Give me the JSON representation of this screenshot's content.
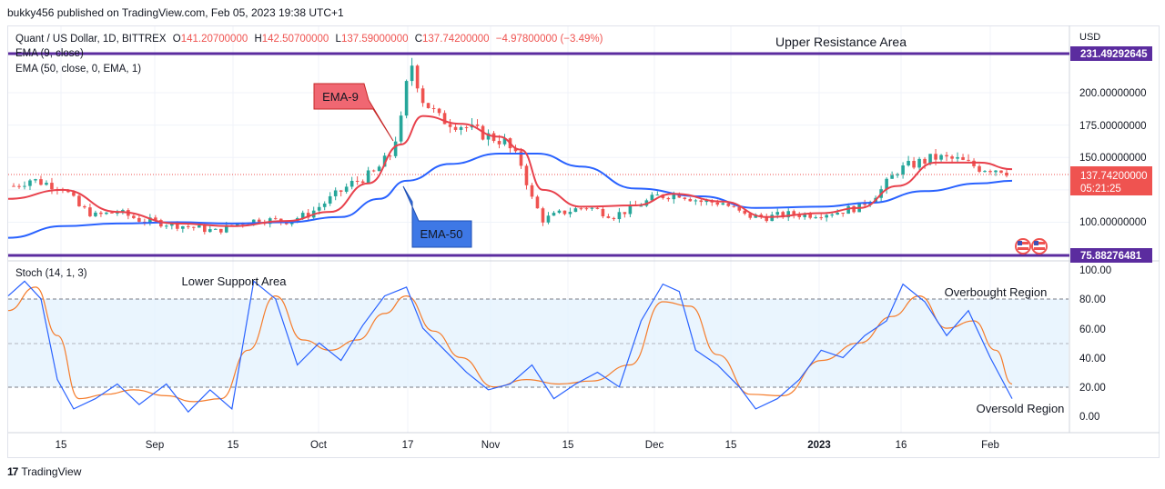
{
  "header": {
    "published": "bukky456 published on TradingView.com, Feb 05, 2023 19:38 UTC+1"
  },
  "legend": {
    "symbol": "Quant / US Dollar, 1D, BITTREX",
    "o_label": "O",
    "o_value": "141.20700000",
    "h_label": "H",
    "h_value": "142.50700000",
    "l_label": "L",
    "l_value": "137.59000000",
    "c_label": "C",
    "c_value": "137.74200000",
    "change": "−4.97800000 (−3.49%)",
    "ema9": "EMA (9, close)",
    "ema50": "EMA (50, close, 0, EMA, 1)",
    "stoch": "Stoch (14, 1, 3)"
  },
  "annotations": {
    "upper": "Upper Resistance Area",
    "lower": "Lower Support Area",
    "ema9_callout": "EMA-9",
    "ema50_callout": "EMA-50",
    "overbought": "Overbought Region",
    "oversold": "Oversold Region"
  },
  "price_axis": {
    "currency": "USD",
    "ticks": [
      "200.00000000",
      "175.00000000",
      "150.00000000",
      "100.00000000"
    ],
    "resistance_label": "231.49292645",
    "support_label": "75.88276481",
    "last_price_label": "137.74200000",
    "countdown_label": "05:21:25"
  },
  "stoch_axis": {
    "ticks": [
      "100.00",
      "80.00",
      "60.00",
      "40.00",
      "20.00",
      "0.00"
    ]
  },
  "time_axis": [
    "15",
    "Sep",
    "15",
    "Oct",
    "17",
    "Nov",
    "15",
    "Dec",
    "15",
    "2023",
    "16",
    "Feb"
  ],
  "footer": {
    "brand": "TradingView",
    "logo": "17"
  },
  "colors": {
    "up": "#26a69a",
    "down": "#ef5350",
    "ema9": "#e8414c",
    "ema50": "#2962ff",
    "level": "#5b2c9f",
    "stoch_k": "#2962ff",
    "stoch_d": "#f57c2b",
    "band": "#e3f2fd"
  },
  "chart_data": [
    {
      "type": "candlestick",
      "title": "Quant / US Dollar, 1D, BITTREX",
      "y_unit": "USD",
      "ylim": [
        72,
        240
      ],
      "x_range": [
        "2022-08-05",
        "2023-02-05"
      ],
      "resistance_level": 231.49292645,
      "support_level": 75.88276481,
      "last_close": 137.742,
      "ohlc_points": [
        {
          "date": "2022-08-06",
          "close": 128
        },
        {
          "date": "2022-08-09",
          "close": 133
        },
        {
          "date": "2022-08-12",
          "close": 130
        },
        {
          "date": "2022-08-15",
          "close": 127
        },
        {
          "date": "2022-08-18",
          "close": 112
        },
        {
          "date": "2022-08-21",
          "close": 105
        },
        {
          "date": "2022-08-25",
          "close": 108
        },
        {
          "date": "2022-08-29",
          "close": 102
        },
        {
          "date": "2022-09-03",
          "close": 99
        },
        {
          "date": "2022-09-08",
          "close": 96
        },
        {
          "date": "2022-09-12",
          "close": 93
        },
        {
          "date": "2022-09-16",
          "close": 99
        },
        {
          "date": "2022-09-20",
          "close": 102
        },
        {
          "date": "2022-09-25",
          "close": 101
        },
        {
          "date": "2022-09-29",
          "close": 106
        },
        {
          "date": "2022-10-03",
          "close": 118
        },
        {
          "date": "2022-10-07",
          "close": 130
        },
        {
          "date": "2022-10-11",
          "close": 138
        },
        {
          "date": "2022-10-14",
          "close": 152
        },
        {
          "date": "2022-10-16",
          "close": 178
        },
        {
          "date": "2022-10-17",
          "close": 205
        },
        {
          "date": "2022-10-18",
          "close": 222
        },
        {
          "date": "2022-10-20",
          "close": 195
        },
        {
          "date": "2022-10-23",
          "close": 180
        },
        {
          "date": "2022-10-27",
          "close": 175
        },
        {
          "date": "2022-10-31",
          "close": 168
        },
        {
          "date": "2022-11-04",
          "close": 162
        },
        {
          "date": "2022-11-07",
          "close": 145
        },
        {
          "date": "2022-11-09",
          "close": 118
        },
        {
          "date": "2022-11-11",
          "close": 102
        },
        {
          "date": "2022-11-15",
          "close": 108
        },
        {
          "date": "2022-11-19",
          "close": 112
        },
        {
          "date": "2022-11-24",
          "close": 105
        },
        {
          "date": "2022-11-28",
          "close": 112
        },
        {
          "date": "2022-12-02",
          "close": 120
        },
        {
          "date": "2022-12-06",
          "close": 122
        },
        {
          "date": "2022-12-10",
          "close": 116
        },
        {
          "date": "2022-12-14",
          "close": 115
        },
        {
          "date": "2022-12-18",
          "close": 105
        },
        {
          "date": "2022-12-22",
          "close": 104
        },
        {
          "date": "2022-12-26",
          "close": 106
        },
        {
          "date": "2022-12-30",
          "close": 106
        },
        {
          "date": "2023-01-04",
          "close": 108
        },
        {
          "date": "2023-01-08",
          "close": 112
        },
        {
          "date": "2023-01-12",
          "close": 125
        },
        {
          "date": "2023-01-15",
          "close": 140
        },
        {
          "date": "2023-01-18",
          "close": 145
        },
        {
          "date": "2023-01-22",
          "close": 150
        },
        {
          "date": "2023-01-26",
          "close": 148
        },
        {
          "date": "2023-01-30",
          "close": 142
        },
        {
          "date": "2023-02-03",
          "close": 141
        },
        {
          "date": "2023-02-05",
          "close": 137.742
        }
      ],
      "series": [
        {
          "name": "EMA (9, close)",
          "points": [
            {
              "date": "2022-08-05",
              "value": 118
            },
            {
              "date": "2022-08-15",
              "value": 125
            },
            {
              "date": "2022-08-25",
              "value": 108
            },
            {
              "date": "2022-09-05",
              "value": 99
            },
            {
              "date": "2022-09-15",
              "value": 97
            },
            {
              "date": "2022-09-25",
              "value": 101
            },
            {
              "date": "2022-10-03",
              "value": 108
            },
            {
              "date": "2022-10-10",
              "value": 130
            },
            {
              "date": "2022-10-16",
              "value": 160
            },
            {
              "date": "2022-10-20",
              "value": 182
            },
            {
              "date": "2022-10-27",
              "value": 176
            },
            {
              "date": "2022-11-03",
              "value": 166
            },
            {
              "date": "2022-11-07",
              "value": 156
            },
            {
              "date": "2022-11-11",
              "value": 125
            },
            {
              "date": "2022-11-18",
              "value": 112
            },
            {
              "date": "2022-11-28",
              "value": 113
            },
            {
              "date": "2022-12-05",
              "value": 122
            },
            {
              "date": "2022-12-14",
              "value": 116
            },
            {
              "date": "2022-12-22",
              "value": 104
            },
            {
              "date": "2023-01-01",
              "value": 107
            },
            {
              "date": "2023-01-08",
              "value": 111
            },
            {
              "date": "2023-01-15",
              "value": 128
            },
            {
              "date": "2023-01-22",
              "value": 146
            },
            {
              "date": "2023-01-30",
              "value": 146
            },
            {
              "date": "2023-02-05",
              "value": 141
            }
          ]
        },
        {
          "name": "EMA (50, close, 0, EMA, 1)",
          "points": [
            {
              "date": "2022-08-05",
              "value": 88
            },
            {
              "date": "2022-08-15",
              "value": 97
            },
            {
              "date": "2022-08-25",
              "value": 99
            },
            {
              "date": "2022-09-05",
              "value": 100
            },
            {
              "date": "2022-09-15",
              "value": 99
            },
            {
              "date": "2022-09-25",
              "value": 100
            },
            {
              "date": "2022-10-05",
              "value": 104
            },
            {
              "date": "2022-10-12",
              "value": 118
            },
            {
              "date": "2022-10-17",
              "value": 132
            },
            {
              "date": "2022-10-25",
              "value": 145
            },
            {
              "date": "2022-11-03",
              "value": 153
            },
            {
              "date": "2022-11-10",
              "value": 153
            },
            {
              "date": "2022-11-18",
              "value": 143
            },
            {
              "date": "2022-11-28",
              "value": 126
            },
            {
              "date": "2022-12-10",
              "value": 120
            },
            {
              "date": "2022-12-20",
              "value": 111
            },
            {
              "date": "2023-01-01",
              "value": 112
            },
            {
              "date": "2023-01-10",
              "value": 115
            },
            {
              "date": "2023-01-20",
              "value": 124
            },
            {
              "date": "2023-01-30",
              "value": 130
            },
            {
              "date": "2023-02-05",
              "value": 132
            }
          ]
        }
      ]
    },
    {
      "type": "line",
      "title": "Stoch (14, 1, 3)",
      "ylim": [
        -12,
        102
      ],
      "bands": {
        "upper": 80,
        "middle": 50,
        "lower": 20
      },
      "series": [
        {
          "name": "%K",
          "points": [
            {
              "date": "2022-08-05",
              "value": 82
            },
            {
              "date": "2022-08-08",
              "value": 92
            },
            {
              "date": "2022-08-11",
              "value": 80
            },
            {
              "date": "2022-08-14",
              "value": 25
            },
            {
              "date": "2022-08-17",
              "value": 5
            },
            {
              "date": "2022-08-21",
              "value": 12
            },
            {
              "date": "2022-08-25",
              "value": 22
            },
            {
              "date": "2022-08-29",
              "value": 8
            },
            {
              "date": "2022-09-03",
              "value": 22
            },
            {
              "date": "2022-09-07",
              "value": 3
            },
            {
              "date": "2022-09-11",
              "value": 18
            },
            {
              "date": "2022-09-15",
              "value": 5
            },
            {
              "date": "2022-09-19",
              "value": 92
            },
            {
              "date": "2022-09-23",
              "value": 80
            },
            {
              "date": "2022-09-27",
              "value": 35
            },
            {
              "date": "2022-10-01",
              "value": 50
            },
            {
              "date": "2022-10-05",
              "value": 38
            },
            {
              "date": "2022-10-09",
              "value": 62
            },
            {
              "date": "2022-10-13",
              "value": 82
            },
            {
              "date": "2022-10-17",
              "value": 88
            },
            {
              "date": "2022-10-20",
              "value": 60
            },
            {
              "date": "2022-10-24",
              "value": 45
            },
            {
              "date": "2022-10-28",
              "value": 30
            },
            {
              "date": "2022-11-01",
              "value": 18
            },
            {
              "date": "2022-11-05",
              "value": 22
            },
            {
              "date": "2022-11-09",
              "value": 35
            },
            {
              "date": "2022-11-13",
              "value": 12
            },
            {
              "date": "2022-11-17",
              "value": 22
            },
            {
              "date": "2022-11-21",
              "value": 30
            },
            {
              "date": "2022-11-25",
              "value": 20
            },
            {
              "date": "2022-11-29",
              "value": 65
            },
            {
              "date": "2022-12-03",
              "value": 90
            },
            {
              "date": "2022-12-06",
              "value": 85
            },
            {
              "date": "2022-12-09",
              "value": 45
            },
            {
              "date": "2022-12-13",
              "value": 35
            },
            {
              "date": "2022-12-17",
              "value": 20
            },
            {
              "date": "2022-12-20",
              "value": 5
            },
            {
              "date": "2022-12-24",
              "value": 12
            },
            {
              "date": "2022-12-28",
              "value": 25
            },
            {
              "date": "2023-01-01",
              "value": 45
            },
            {
              "date": "2023-01-05",
              "value": 40
            },
            {
              "date": "2023-01-09",
              "value": 55
            },
            {
              "date": "2023-01-13",
              "value": 65
            },
            {
              "date": "2023-01-16",
              "value": 90
            },
            {
              "date": "2023-01-20",
              "value": 78
            },
            {
              "date": "2023-01-24",
              "value": 55
            },
            {
              "date": "2023-01-28",
              "value": 72
            },
            {
              "date": "2023-02-01",
              "value": 40
            },
            {
              "date": "2023-02-05",
              "value": 12
            }
          ]
        },
        {
          "name": "%D",
          "points": [
            {
              "date": "2022-08-05",
              "value": 72
            },
            {
              "date": "2022-08-10",
              "value": 88
            },
            {
              "date": "2022-08-14",
              "value": 55
            },
            {
              "date": "2022-08-18",
              "value": 12
            },
            {
              "date": "2022-08-23",
              "value": 15
            },
            {
              "date": "2022-08-28",
              "value": 18
            },
            {
              "date": "2022-09-03",
              "value": 14
            },
            {
              "date": "2022-09-08",
              "value": 10
            },
            {
              "date": "2022-09-13",
              "value": 12
            },
            {
              "date": "2022-09-18",
              "value": 45
            },
            {
              "date": "2022-09-23",
              "value": 82
            },
            {
              "date": "2022-09-28",
              "value": 52
            },
            {
              "date": "2022-10-03",
              "value": 45
            },
            {
              "date": "2022-10-08",
              "value": 52
            },
            {
              "date": "2022-10-13",
              "value": 70
            },
            {
              "date": "2022-10-17",
              "value": 82
            },
            {
              "date": "2022-10-22",
              "value": 58
            },
            {
              "date": "2022-10-27",
              "value": 40
            },
            {
              "date": "2022-11-02",
              "value": 20
            },
            {
              "date": "2022-11-08",
              "value": 25
            },
            {
              "date": "2022-11-14",
              "value": 22
            },
            {
              "date": "2022-11-20",
              "value": 24
            },
            {
              "date": "2022-11-27",
              "value": 35
            },
            {
              "date": "2022-12-03",
              "value": 78
            },
            {
              "date": "2022-12-08",
              "value": 75
            },
            {
              "date": "2022-12-13",
              "value": 42
            },
            {
              "date": "2022-12-19",
              "value": 15
            },
            {
              "date": "2022-12-25",
              "value": 14
            },
            {
              "date": "2023-01-01",
              "value": 38
            },
            {
              "date": "2023-01-08",
              "value": 50
            },
            {
              "date": "2023-01-14",
              "value": 68
            },
            {
              "date": "2023-01-19",
              "value": 82
            },
            {
              "date": "2023-01-24",
              "value": 60
            },
            {
              "date": "2023-01-29",
              "value": 65
            },
            {
              "date": "2023-02-02",
              "value": 45
            },
            {
              "date": "2023-02-05",
              "value": 22
            }
          ]
        }
      ]
    }
  ]
}
